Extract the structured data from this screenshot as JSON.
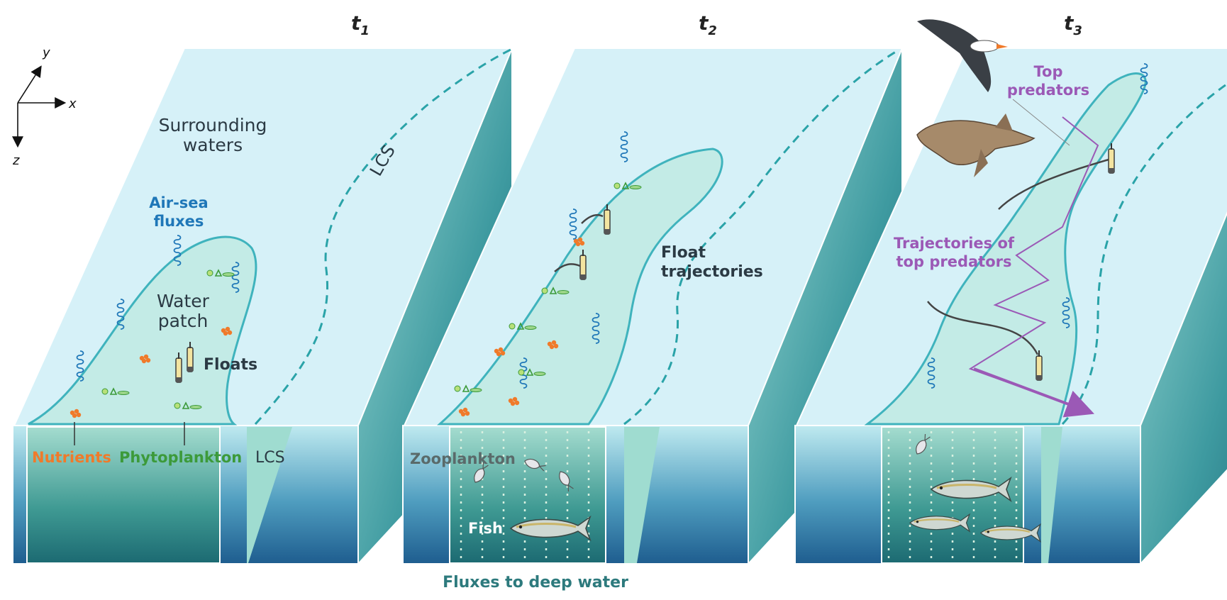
{
  "time_labels": [
    {
      "base": "t",
      "sub": "1"
    },
    {
      "base": "t",
      "sub": "2"
    },
    {
      "base": "t",
      "sub": "3"
    }
  ],
  "axes": {
    "x": "x",
    "y": "y",
    "z": "z"
  },
  "panel1": {
    "surrounding": [
      "Surrounding",
      "waters"
    ],
    "lcs_top": "LCS",
    "air_sea": [
      "Air-sea",
      "fluxes"
    ],
    "water_patch": [
      "Water",
      "patch"
    ],
    "floats": "Floats",
    "nutrients": "Nutrients",
    "phytoplankton": "Phytoplankton",
    "lcs_side": "LCS"
  },
  "panel2": {
    "float_traj": [
      "Float",
      "trajectories"
    ],
    "zooplankton": "Zooplankton",
    "fish": "Fish",
    "fluxes_deep": "Fluxes to deep water"
  },
  "panel3": {
    "top_predators": [
      "Top",
      "predators"
    ],
    "traj_predators": [
      "Trajectories of",
      "top predators"
    ]
  },
  "colors": {
    "sea_top": "#d6f1f8",
    "patch": "#c3ebe6",
    "patch_edge": "#3fb3bd",
    "lcs_dash": "#2aa3a8",
    "side_dark": "#1e6f7a",
    "nutrients": "#f07a2a",
    "phytoplankton": "#3c9a3a",
    "air_sea": "#1f77b8",
    "predator": "#9b59b6"
  }
}
